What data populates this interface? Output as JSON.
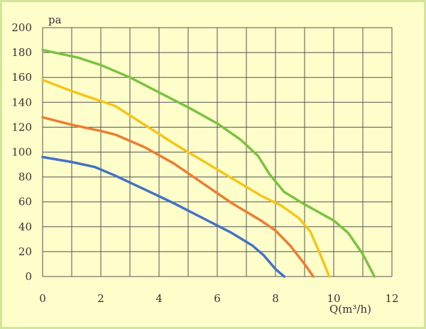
{
  "chart_data": {
    "type": "line",
    "title": "",
    "ylabel": "pa",
    "xlabel": "Q(m³/h)",
    "xlim": [
      0,
      12
    ],
    "ylim": [
      0,
      200
    ],
    "xticks": [
      0,
      2,
      4,
      6,
      8,
      10,
      12
    ],
    "yticks": [
      0,
      20,
      40,
      60,
      80,
      100,
      120,
      140,
      160,
      180,
      200
    ],
    "grid": true,
    "legend": "none",
    "series": [
      {
        "color": "#4472c4",
        "points": [
          [
            0,
            96
          ],
          [
            1,
            92
          ],
          [
            1.8,
            88
          ],
          [
            2.5,
            81
          ],
          [
            3.5,
            70
          ],
          [
            4.5,
            59
          ],
          [
            5.5,
            47
          ],
          [
            6.5,
            35
          ],
          [
            7.2,
            25
          ],
          [
            7.6,
            17
          ],
          [
            8,
            6
          ],
          [
            8.3,
            0
          ]
        ]
      },
      {
        "color": "#ed7d31",
        "points": [
          [
            0,
            128
          ],
          [
            1,
            122
          ],
          [
            2,
            117
          ],
          [
            2.5,
            114
          ],
          [
            3.5,
            104
          ],
          [
            4.5,
            91
          ],
          [
            5.5,
            75
          ],
          [
            6.5,
            59
          ],
          [
            7.5,
            45
          ],
          [
            8,
            37
          ],
          [
            8.5,
            25
          ],
          [
            9,
            10
          ],
          [
            9.3,
            0
          ]
        ]
      },
      {
        "color": "#f5c518",
        "points": [
          [
            0,
            158
          ],
          [
            1,
            149
          ],
          [
            2,
            141
          ],
          [
            2.5,
            137
          ],
          [
            3.5,
            122
          ],
          [
            4.5,
            107
          ],
          [
            5.5,
            93
          ],
          [
            6.5,
            79
          ],
          [
            7.5,
            65
          ],
          [
            8.2,
            57
          ],
          [
            8.8,
            47
          ],
          [
            9.2,
            36
          ],
          [
            9.5,
            20
          ],
          [
            9.85,
            0
          ]
        ]
      },
      {
        "color": "#7cc242",
        "points": [
          [
            0,
            182
          ],
          [
            1.2,
            176
          ],
          [
            2,
            170
          ],
          [
            3,
            160
          ],
          [
            4,
            148
          ],
          [
            5,
            136
          ],
          [
            6,
            123
          ],
          [
            6.8,
            110
          ],
          [
            7.4,
            97
          ],
          [
            7.8,
            82
          ],
          [
            8.3,
            68
          ],
          [
            9,
            58
          ],
          [
            10,
            45
          ],
          [
            10.5,
            35
          ],
          [
            11,
            18
          ],
          [
            11.4,
            0
          ]
        ]
      }
    ]
  }
}
